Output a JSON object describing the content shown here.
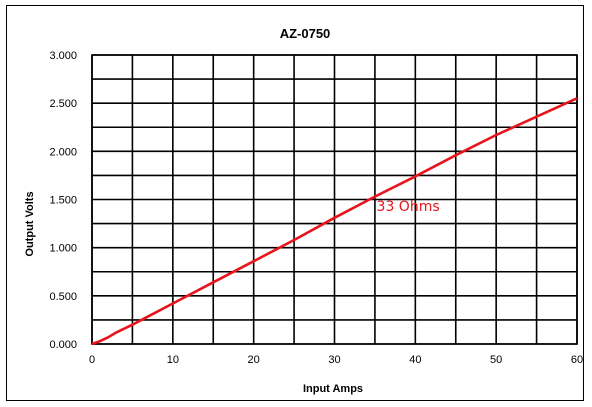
{
  "chart_data": {
    "type": "line",
    "title": "AZ-0750",
    "xlabel": "Input Amps",
    "ylabel": "Output Volts",
    "xlim": [
      0,
      60
    ],
    "ylim": [
      0,
      3
    ],
    "x_ticks": [
      0,
      10,
      20,
      30,
      40,
      50,
      60
    ],
    "x_tick_labels": [
      "0",
      "10",
      "20",
      "30",
      "40",
      "50",
      "60"
    ],
    "y_ticks": [
      0,
      0.5,
      1,
      1.5,
      2,
      2.5,
      3
    ],
    "y_tick_labels": [
      "0.000",
      "0.500",
      "1.000",
      "1.500",
      "2.000",
      "2.500",
      "3.000"
    ],
    "x_grid_step": 5,
    "y_grid_step": 0.25,
    "grid": true,
    "legend": "none",
    "series": [
      {
        "color": "#e8141b",
        "x": [
          0,
          1,
          2,
          3,
          5,
          10,
          15,
          20,
          25,
          30,
          35,
          40,
          45,
          50,
          55,
          60
        ],
        "y": [
          0,
          0.03,
          0.07,
          0.12,
          0.2,
          0.42,
          0.64,
          0.86,
          1.08,
          1.31,
          1.53,
          1.74,
          1.96,
          2.17,
          2.36,
          2.55
        ]
      }
    ],
    "annotations": [
      {
        "text": "33 Ohms",
        "x": 35.2,
        "y": 1.38,
        "color": "#e8141b"
      }
    ]
  }
}
